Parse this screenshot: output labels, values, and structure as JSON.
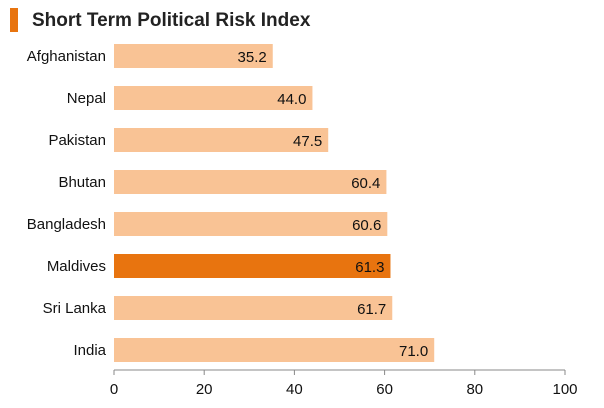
{
  "colors": {
    "accent": "#e8740f",
    "bar": "#f9c395",
    "highlight": "#e8740f",
    "axis": "#888888"
  },
  "chart_data": {
    "type": "bar",
    "orientation": "horizontal",
    "title": "Short Term Political Risk Index",
    "categories": [
      "Afghanistan",
      "Nepal",
      "Pakistan",
      "Bhutan",
      "Bangladesh",
      "Maldives",
      "Sri Lanka",
      "India"
    ],
    "values": [
      35.2,
      44.0,
      47.5,
      60.4,
      60.6,
      61.3,
      61.7,
      71.0
    ],
    "value_labels": [
      "35.2",
      "44.0",
      "47.5",
      "60.4",
      "60.6",
      "61.3",
      "61.7",
      "71.0"
    ],
    "highlighted_category": "Maldives",
    "xlim": [
      0,
      100
    ],
    "xticks": [
      "0",
      "20",
      "40",
      "60",
      "80",
      "100"
    ],
    "grid": false,
    "legend": "none"
  }
}
